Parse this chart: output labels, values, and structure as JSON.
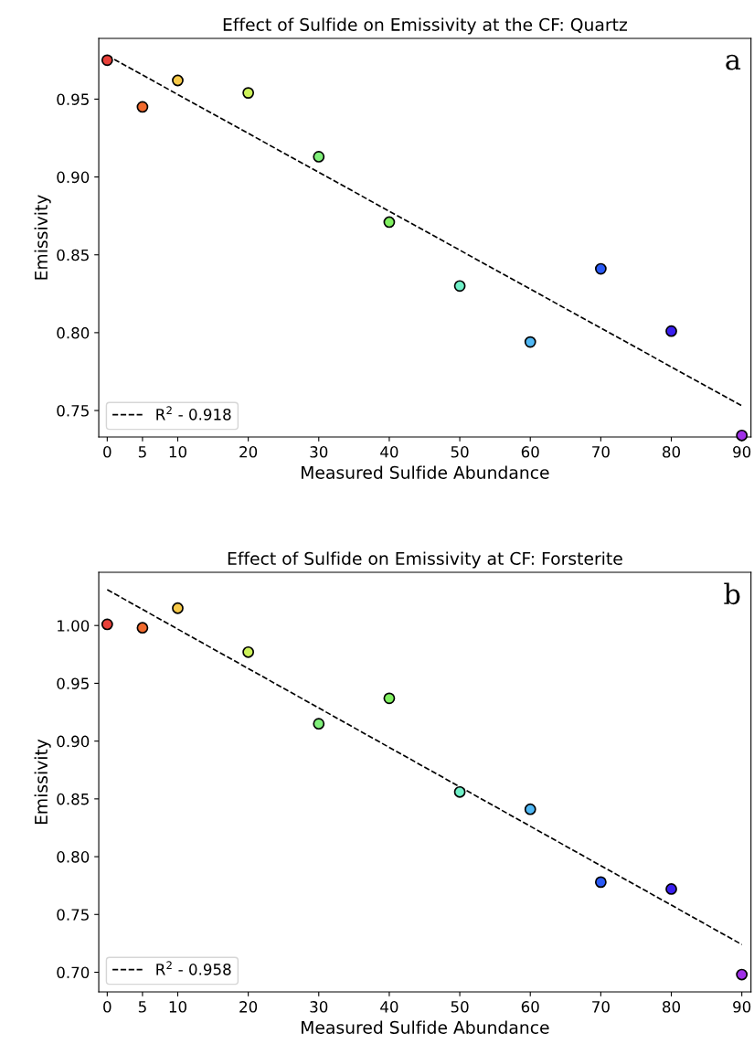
{
  "chart_data": [
    {
      "type": "scatter",
      "title": "Effect of Sulfide on Emissivity at the CF: Quartz",
      "xlabel": "Measured Sulfide Abundance",
      "ylabel": "Emissivity",
      "annotations": [
        "a"
      ],
      "xlim": [
        -1.2,
        91.3
      ],
      "ylim": [
        0.733,
        0.989
      ],
      "xticks": [
        0,
        5,
        10,
        20,
        30,
        40,
        50,
        60,
        70,
        80,
        90
      ],
      "yticks": [
        0.75,
        {
          "value": 0.8,
          "label": "0.80"
        },
        0.85,
        {
          "value": 0.9,
          "label": "0.90"
        },
        0.95
      ],
      "grid": false,
      "legend": "bottom left",
      "series": [
        {
          "marker": "circle",
          "x": [
            0,
            5,
            10,
            20,
            30,
            40,
            50,
            60,
            70,
            80,
            90
          ],
          "values": [
            0.975,
            0.945,
            0.962,
            0.954,
            0.913,
            0.871,
            0.83,
            0.794,
            0.841,
            0.801,
            0.734
          ],
          "colors": [
            "#e8413a",
            "#f06a2e",
            "#f7c948",
            "#cdf25a",
            "#80f07a",
            "#80f060",
            "#70f0c8",
            "#50b8f5",
            "#2a5af5",
            "#3a1ff0",
            "#a030e8"
          ]
        },
        {
          "type": "line",
          "name": "R$^{2}$ - 0.918",
          "color": "#000000",
          "line_style": "dashed",
          "x": [
            0,
            90
          ],
          "values": [
            0.978,
            0.753
          ]
        }
      ]
    },
    {
      "type": "scatter",
      "title": "Effect of Sulfide on Emissivity at CF: Forsterite",
      "xlabel": "Measured Sulfide Abundance",
      "ylabel": "Emissivity",
      "annotations": [
        "b"
      ],
      "xlim": [
        -1.2,
        91.3
      ],
      "ylim": [
        0.683,
        1.046
      ],
      "xticks": [
        0,
        5,
        10,
        20,
        30,
        40,
        50,
        60,
        70,
        80,
        90
      ],
      "yticks": [
        {
          "value": 0.7,
          "label": "0.70"
        },
        0.75,
        {
          "value": 0.8,
          "label": "0.80"
        },
        0.85,
        {
          "value": 0.9,
          "label": "0.90"
        },
        0.95,
        {
          "value": 1.0,
          "label": "1.00"
        }
      ],
      "grid": false,
      "legend": "bottom left",
      "series": [
        {
          "marker": "circle",
          "x": [
            0,
            5,
            10,
            20,
            30,
            40,
            50,
            60,
            70,
            80,
            90
          ],
          "values": [
            1.001,
            0.998,
            1.015,
            0.977,
            0.915,
            0.937,
            0.856,
            0.841,
            0.778,
            0.772,
            0.698
          ],
          "colors": [
            "#e8413a",
            "#f06a2e",
            "#f7c948",
            "#cdf25a",
            "#80f07a",
            "#80f060",
            "#70f0c8",
            "#50b8f5",
            "#2a5af5",
            "#3a1ff0",
            "#a030e8"
          ]
        },
        {
          "type": "line",
          "name": "R$^{2}$ - 0.958",
          "color": "#000000",
          "line_style": "dashed",
          "x": [
            0,
            90
          ],
          "values": [
            1.031,
            0.724
          ]
        }
      ]
    }
  ]
}
